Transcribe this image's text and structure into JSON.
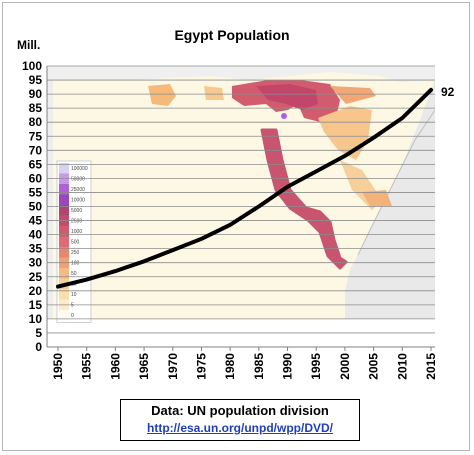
{
  "chart_data": {
    "type": "line",
    "title": "Egypt Population",
    "ylabel": "Mill.",
    "xlim": [
      1950,
      2015
    ],
    "ylim": [
      0,
      100
    ],
    "yticks": [
      0,
      5,
      10,
      15,
      20,
      25,
      30,
      35,
      40,
      45,
      50,
      55,
      60,
      65,
      70,
      75,
      80,
      85,
      90,
      95,
      100
    ],
    "xticks": [
      1950,
      1955,
      1960,
      1965,
      1970,
      1975,
      1980,
      1985,
      1990,
      1995,
      2000,
      2005,
      2010,
      2015
    ],
    "grid": "horizontal",
    "series": [
      {
        "color": "#000000",
        "x": [
          1950,
          1955,
          1960,
          1965,
          1970,
          1975,
          1980,
          1985,
          1990,
          1995,
          2000,
          2005,
          2010,
          2015
        ],
        "y": [
          21.5,
          24.0,
          27.0,
          30.5,
          34.5,
          38.5,
          43.5,
          50.0,
          57.0,
          62.5,
          68.0,
          74.5,
          81.5,
          91.5
        ]
      }
    ],
    "end_label": "92",
    "background_map": {
      "legend_values": [
        "100000",
        "50000",
        "25000",
        "10000",
        "5000",
        "2500",
        "1000",
        "500",
        "250",
        "100",
        "50",
        "25",
        "10",
        "5",
        "0"
      ],
      "legend_colors": [
        "#d9d2ef",
        "#c39be6",
        "#b260d9",
        "#9b46bf",
        "#b0466d",
        "#c44c6a",
        "#d25a6f",
        "#e06a72",
        "#ea8570",
        "#f0a071",
        "#f4b984",
        "#f7ce96",
        "#fadfae",
        "#fceccb",
        "#fefaf0"
      ]
    }
  },
  "source": {
    "line1": "Data: UN population division",
    "link": "http://esa.un.org/unpd/wpp/DVD/"
  }
}
